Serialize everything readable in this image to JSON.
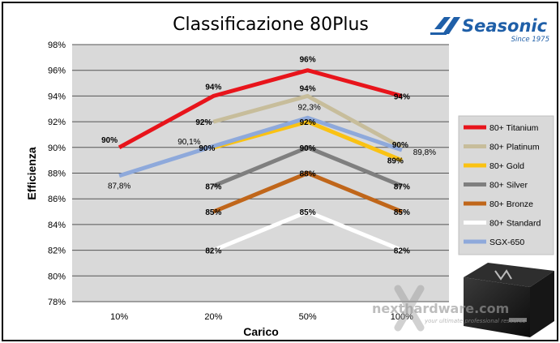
{
  "chart_data": {
    "type": "line",
    "title": "Classificazione 80Plus",
    "xlabel": "Carico",
    "ylabel": "Efficienza",
    "categories": [
      "10%",
      "20%",
      "50%",
      "100%"
    ],
    "ylim": [
      78,
      98
    ],
    "y_ticks": [
      78,
      80,
      82,
      84,
      86,
      88,
      90,
      92,
      94,
      96,
      98
    ],
    "y_tick_labels": [
      "78%",
      "80%",
      "82%",
      "84%",
      "86%",
      "88%",
      "90%",
      "92%",
      "94%",
      "96%",
      "98%"
    ],
    "grid": true,
    "legend_position": "right",
    "series": [
      {
        "name": "80+ Titanium",
        "color": "#e8141b",
        "values": [
          90,
          94,
          96,
          94
        ],
        "labels": [
          "90%",
          "94%",
          "96%",
          "94%"
        ]
      },
      {
        "name": "80+ Platinum",
        "color": "#c7bd9b",
        "values": [
          null,
          92,
          94,
          90
        ],
        "labels": [
          "",
          "92%",
          "94%",
          "90%"
        ]
      },
      {
        "name": "80+ Gold",
        "color": "#fac213",
        "values": [
          null,
          90,
          92,
          89
        ],
        "labels": [
          "",
          "90%",
          "92%",
          "89%"
        ]
      },
      {
        "name": "80+ Silver",
        "color": "#7f7f7f",
        "values": [
          null,
          87,
          90,
          87
        ],
        "labels": [
          "",
          "87%",
          "90%",
          "87%"
        ]
      },
      {
        "name": "80+ Bronze",
        "color": "#c0661a",
        "values": [
          null,
          85,
          88,
          85
        ],
        "labels": [
          "",
          "85%",
          "88%",
          "85%"
        ]
      },
      {
        "name": "80+ Standard",
        "color": "#ffffff",
        "values": [
          null,
          82,
          85,
          82
        ],
        "labels": [
          "",
          "82%",
          "85%",
          "82%"
        ]
      },
      {
        "name": "SGX-650",
        "color": "#8ea9db",
        "values": [
          87.8,
          90.1,
          92.3,
          89.8
        ],
        "labels": [
          "87,8%",
          "90,1%",
          "92,3%",
          "89,8%"
        ]
      }
    ]
  },
  "branding": {
    "logo_name": "Seasonic",
    "logo_tagline": "Since 1975",
    "watermark": "nexthardware.com",
    "watermark_sub": "your ultimate professional resource"
  },
  "colors": {
    "plot_background": "#d9d9d9",
    "grid": "#555555",
    "brand_blue": "#1f5fa8"
  }
}
